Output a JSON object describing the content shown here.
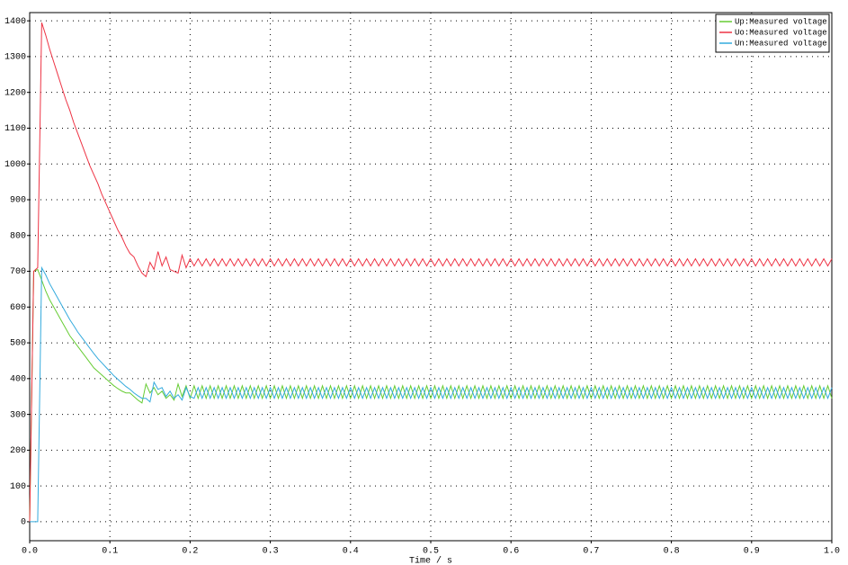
{
  "chart_data": {
    "type": "line",
    "xlabel": "Time / s",
    "xlim": [
      0,
      1.0
    ],
    "ylim": [
      -53,
      1423
    ],
    "xticks": [
      {
        "value": 0,
        "label": "0.0"
      },
      0.1,
      0.2,
      0.3,
      0.4,
      0.5,
      0.6,
      0.7,
      0.8,
      0.9,
      {
        "value": 1,
        "label": "1.0"
      }
    ],
    "yticks": [
      0,
      100,
      200,
      300,
      400,
      500,
      600,
      700,
      800,
      900,
      1000,
      1100,
      1200,
      1300,
      1400
    ],
    "grid": true,
    "legend": "top-right",
    "x": [
      0,
      0.005,
      0.01,
      0.015,
      0.02,
      0.025,
      0.03,
      0.035,
      0.04,
      0.045,
      0.05,
      0.055,
      0.06,
      0.065,
      0.07,
      0.075,
      0.08,
      0.085,
      0.09,
      0.095,
      0.1,
      0.105,
      0.11,
      0.115,
      0.12,
      0.125,
      0.13,
      0.135,
      0.14,
      0.145,
      0.15,
      0.155,
      0.16,
      0.165,
      0.17,
      0.175,
      0.18,
      0.185,
      0.19,
      0.195,
      0.2,
      0.205,
      0.21,
      0.215,
      0.22,
      0.225,
      0.23,
      0.235,
      0.24,
      0.245,
      0.25,
      0.255,
      0.26,
      0.265,
      0.27,
      0.275,
      0.28,
      0.285,
      0.29,
      0.295,
      0.3,
      0.305,
      0.31,
      0.315,
      0.32,
      0.325,
      0.33,
      0.335,
      0.34,
      0.345,
      0.35,
      0.355,
      0.36,
      0.365,
      0.37,
      0.375,
      0.38,
      0.385,
      0.39,
      0.395,
      0.4,
      0.405,
      0.41,
      0.415,
      0.42,
      0.425,
      0.43,
      0.435,
      0.44,
      0.445,
      0.45,
      0.455,
      0.46,
      0.465,
      0.47,
      0.475,
      0.48,
      0.485,
      0.49,
      0.495,
      0.5,
      0.505,
      0.51,
      0.515,
      0.52,
      0.525,
      0.53,
      0.535,
      0.54,
      0.545,
      0.55,
      0.555,
      0.56,
      0.565,
      0.57,
      0.575,
      0.58,
      0.585,
      0.59,
      0.595,
      0.6,
      0.605,
      0.61,
      0.615,
      0.62,
      0.625,
      0.63,
      0.635,
      0.64,
      0.645,
      0.65,
      0.655,
      0.66,
      0.665,
      0.67,
      0.675,
      0.68,
      0.685,
      0.69,
      0.695,
      0.7,
      0.705,
      0.71,
      0.715,
      0.72,
      0.725,
      0.73,
      0.735,
      0.74,
      0.745,
      0.75,
      0.755,
      0.76,
      0.765,
      0.77,
      0.775,
      0.78,
      0.785,
      0.79,
      0.795,
      0.8,
      0.805,
      0.81,
      0.815,
      0.82,
      0.825,
      0.83,
      0.835,
      0.84,
      0.845,
      0.85,
      0.855,
      0.86,
      0.865,
      0.87,
      0.875,
      0.88,
      0.885,
      0.89,
      0.895,
      0.9,
      0.905,
      0.91,
      0.915,
      0.92,
      0.925,
      0.93,
      0.935,
      0.94,
      0.945,
      0.95,
      0.955,
      0.96,
      0.965,
      0.97,
      0.975,
      0.98,
      0.985,
      0.99,
      0.995,
      1.0
    ],
    "series": [
      {
        "name": "Up:Measured voltage",
        "color": "#66cc33",
        "values": [
          0,
          700,
          705,
          675,
          645,
          620,
          600,
          580,
          560,
          540,
          520,
          505,
          490,
          475,
          460,
          445,
          430,
          420,
          410,
          400,
          390,
          380,
          372,
          365,
          360,
          360,
          350,
          340,
          332,
          385,
          360,
          375,
          355,
          365,
          345,
          355,
          340,
          385,
          350,
          380,
          345,
          380,
          345,
          380,
          345,
          380,
          345,
          380,
          345,
          380,
          345,
          380,
          345,
          380,
          345,
          380,
          345,
          380,
          345,
          380,
          345,
          380,
          345,
          380,
          345,
          380,
          345,
          380,
          345,
          380,
          345,
          380,
          345,
          380,
          345,
          380,
          345,
          380,
          345,
          380,
          345,
          380,
          345,
          380,
          345,
          380,
          345,
          380,
          345,
          380,
          345,
          380,
          345,
          380,
          345,
          380,
          345,
          380,
          345,
          380,
          345,
          380,
          345,
          380,
          345,
          380,
          345,
          380,
          345,
          380,
          345,
          380,
          345,
          380,
          345,
          380,
          345,
          380,
          345,
          380,
          345,
          380,
          345,
          380,
          345,
          380,
          345,
          380,
          345,
          380,
          345,
          380,
          345,
          380,
          345,
          380,
          345,
          380,
          345,
          380,
          345,
          380,
          345,
          380,
          345,
          380,
          345,
          380,
          345,
          380,
          345,
          380,
          345,
          380,
          345,
          380,
          345,
          380,
          345,
          380,
          345,
          380,
          345,
          380,
          345,
          380,
          345,
          380,
          345,
          380,
          345,
          380,
          345,
          380,
          345,
          380,
          345,
          380,
          345,
          380,
          345,
          380,
          345,
          380,
          345,
          380,
          345,
          380,
          345,
          380,
          345,
          380,
          345,
          380,
          345,
          380,
          345,
          380,
          345,
          380,
          345
        ]
      },
      {
        "name": "Uo:Measured voltage",
        "color": "#ee3344",
        "values": [
          0,
          700,
          710,
          1395,
          1360,
          1320,
          1285,
          1250,
          1215,
          1180,
          1150,
          1115,
          1085,
          1055,
          1025,
          995,
          970,
          945,
          915,
          890,
          865,
          840,
          815,
          795,
          770,
          750,
          740,
          715,
          695,
          685,
          725,
          705,
          755,
          715,
          740,
          705,
          700,
          695,
          745,
          710,
          735,
          715,
          735,
          715,
          735,
          715,
          735,
          715,
          735,
          715,
          735,
          715,
          735,
          715,
          735,
          715,
          735,
          715,
          735,
          715,
          735,
          715,
          735,
          715,
          735,
          715,
          735,
          715,
          735,
          715,
          735,
          715,
          735,
          715,
          735,
          715,
          735,
          715,
          735,
          715,
          735,
          715,
          735,
          715,
          735,
          715,
          735,
          715,
          735,
          715,
          735,
          715,
          735,
          715,
          735,
          715,
          735,
          715,
          735,
          715,
          735,
          715,
          735,
          715,
          735,
          715,
          735,
          715,
          735,
          715,
          735,
          715,
          735,
          715,
          735,
          715,
          735,
          715,
          735,
          715,
          735,
          715,
          735,
          715,
          735,
          715,
          735,
          715,
          735,
          715,
          735,
          715,
          735,
          715,
          735,
          715,
          735,
          715,
          735,
          715,
          735,
          715,
          735,
          715,
          735,
          715,
          735,
          715,
          735,
          715,
          735,
          715,
          735,
          715,
          735,
          715,
          735,
          715,
          735,
          715,
          735,
          715,
          735,
          715,
          735,
          715,
          735,
          715,
          735,
          715,
          735,
          715,
          735,
          715,
          735,
          715,
          735,
          715,
          735,
          715,
          735,
          715,
          735,
          715,
          735,
          715,
          735,
          715,
          735,
          715,
          735,
          715,
          735,
          715,
          735,
          715,
          735,
          715,
          735,
          715,
          735
        ]
      },
      {
        "name": "Un:Measured voltage",
        "color": "#33aadd",
        "values": [
          0,
          0,
          0,
          710,
          690,
          665,
          645,
          625,
          605,
          585,
          565,
          548,
          530,
          515,
          500,
          485,
          470,
          456,
          444,
          432,
          420,
          408,
          398,
          388,
          378,
          370,
          360,
          352,
          345,
          345,
          335,
          390,
          370,
          375,
          350,
          365,
          345,
          355,
          340,
          375,
          350,
          345,
          375,
          345,
          375,
          345,
          375,
          345,
          375,
          345,
          375,
          345,
          375,
          345,
          375,
          345,
          375,
          345,
          375,
          345,
          375,
          345,
          375,
          345,
          375,
          345,
          375,
          345,
          375,
          345,
          375,
          345,
          375,
          345,
          375,
          345,
          375,
          345,
          375,
          345,
          375,
          345,
          375,
          345,
          375,
          345,
          375,
          345,
          375,
          345,
          375,
          345,
          375,
          345,
          375,
          345,
          375,
          345,
          375,
          345,
          375,
          345,
          375,
          345,
          375,
          345,
          375,
          345,
          375,
          345,
          375,
          345,
          375,
          345,
          375,
          345,
          375,
          345,
          375,
          345,
          375,
          345,
          375,
          345,
          375,
          345,
          375,
          345,
          375,
          345,
          375,
          345,
          375,
          345,
          375,
          345,
          375,
          345,
          375,
          345,
          375,
          345,
          375,
          345,
          375,
          345,
          375,
          345,
          375,
          345,
          375,
          345,
          375,
          345,
          375,
          345,
          375,
          345,
          375,
          345,
          375,
          345,
          375,
          345,
          375,
          345,
          375,
          345,
          375,
          345,
          375,
          345,
          375,
          345,
          375,
          345,
          375,
          345,
          375,
          345,
          375,
          345,
          375,
          345,
          375,
          345,
          375,
          345,
          375,
          345,
          375,
          345,
          375,
          345,
          375,
          345,
          375,
          345,
          375,
          345,
          375
        ]
      }
    ]
  }
}
